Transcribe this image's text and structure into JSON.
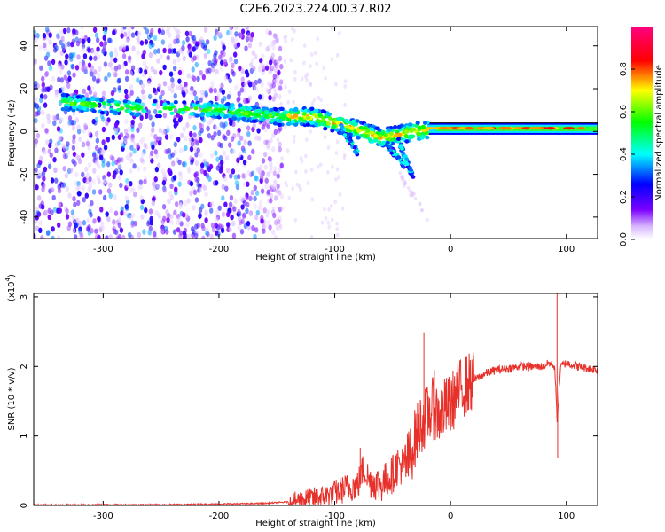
{
  "title": "C2E6.2023.224.00.37.R02",
  "chart_data": [
    {
      "type": "heatmap",
      "xlabel": "Height of straight line (km)",
      "ylabel": "Frequency (Hz)",
      "xlim": [
        -360,
        127
      ],
      "ylim": [
        -50,
        49
      ],
      "xticks": [
        -300,
        -200,
        -100,
        0,
        100
      ],
      "yticks": [
        -40,
        -20,
        0,
        20,
        40
      ],
      "colorbar": {
        "label": "Normalized spectral amplitude",
        "range": [
          0,
          1
        ],
        "ticks": [
          "0.0",
          "0.2",
          "0.4",
          "0.6",
          "0.8"
        ],
        "colormap": [
          "#ffffff",
          "#7a00ff",
          "#0000ff",
          "#00ffff",
          "#00ff00",
          "#ffff00",
          "#ff0000",
          "#ff0080"
        ]
      },
      "ridge": {
        "description_points_x": [
          -320,
          -280,
          -200,
          -150,
          -120,
          -100,
          -80,
          -60,
          -40,
          -20,
          0,
          50,
          100,
          127
        ],
        "description_points_y": [
          13,
          11,
          10,
          7,
          7,
          4,
          1,
          -3,
          -1,
          1,
          1,
          1,
          1,
          1
        ]
      },
      "grid": false
    },
    {
      "type": "line",
      "xlabel": "Height of straight line (km)",
      "ylabel": "SNR (10 * v/v)",
      "yscale_label": "(x10",
      "yscale_exp": "4",
      "yscale_close": ")",
      "xlim": [
        -360,
        127
      ],
      "ylim": [
        0,
        3.05
      ],
      "xticks": [
        -300,
        -200,
        -100,
        0,
        100
      ],
      "yticks": [
        0,
        1,
        2,
        3
      ],
      "series_color": "#e8302a",
      "x": [
        -360,
        -300,
        -250,
        -200,
        -160,
        -140,
        -130,
        -120,
        -110,
        -100,
        -90,
        -80,
        -75,
        -70,
        -60,
        -50,
        -45,
        -40,
        -35,
        -30,
        -25,
        -20,
        -15,
        -10,
        -5,
        0,
        5,
        10,
        15,
        20,
        25,
        30,
        40,
        50,
        60,
        70,
        80,
        85,
        90,
        92,
        95,
        100,
        110,
        120,
        127
      ],
      "values": [
        0.0,
        0.01,
        0.01,
        0.02,
        0.03,
        0.05,
        0.08,
        0.1,
        0.12,
        0.18,
        0.25,
        0.3,
        0.55,
        0.35,
        0.3,
        0.45,
        0.6,
        0.55,
        0.7,
        1.0,
        1.2,
        1.3,
        1.4,
        1.3,
        1.4,
        1.45,
        1.6,
        1.7,
        1.75,
        1.8,
        1.85,
        1.9,
        1.95,
        1.97,
        2.0,
        2.0,
        2.0,
        2.05,
        2.0,
        1.2,
        2.0,
        2.05,
        2.0,
        1.97,
        1.95
      ],
      "spikes": [
        {
          "x": -78,
          "y": 0.83
        },
        {
          "x": -23,
          "y": 2.48
        },
        {
          "x": -14,
          "y": 1.95
        },
        {
          "x": 92,
          "y": 3.05
        },
        {
          "x": 92.5,
          "y": 0.68
        }
      ],
      "grid": false
    }
  ]
}
